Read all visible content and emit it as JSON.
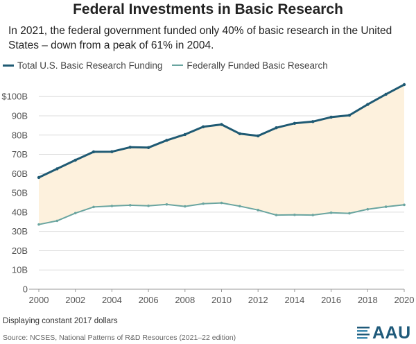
{
  "title": "Federal Investments in Basic Research",
  "subtitle": "In 2021, the federal government funded only 40% of basic research in the United States – down from a peak of 61% in 2004.",
  "footnote": "Displaying constant 2017 dollars",
  "source": "Source: NCSES, National Patterns of R&D Resources (2021–22 edition)",
  "logo": {
    "text": "AAU"
  },
  "colors": {
    "total": "#1f5a73",
    "federal": "#6aa5a0",
    "fill": "#fdf1dd",
    "grid": "#dcdcdc",
    "axis": "#999999"
  },
  "chart_data": {
    "type": "line",
    "x": [
      2000,
      2001,
      2002,
      2003,
      2004,
      2005,
      2006,
      2007,
      2008,
      2009,
      2010,
      2011,
      2012,
      2013,
      2014,
      2015,
      2016,
      2017,
      2018,
      2019,
      2020
    ],
    "xticks": [
      2000,
      2002,
      2004,
      2006,
      2008,
      2010,
      2012,
      2014,
      2016,
      2018,
      2020
    ],
    "yticks": [
      0,
      10,
      20,
      30,
      40,
      50,
      60,
      70,
      80,
      90,
      100
    ],
    "ytick_labels": [
      "0",
      "10B",
      "20B",
      "30B",
      "40B",
      "50B",
      "60B",
      "70B",
      "80B",
      "90B",
      "$100B"
    ],
    "ylim": [
      0,
      108
    ],
    "xlim": [
      2000,
      2020
    ],
    "grid": true,
    "legend_position": "top-left",
    "fill_between_series": true,
    "series": [
      {
        "name": "Total U.S. Basic Research Funding",
        "color": "#1f5a73",
        "values": [
          58.0,
          62.5,
          67.0,
          71.3,
          71.4,
          73.7,
          73.5,
          77.3,
          80.3,
          84.3,
          85.5,
          80.7,
          79.6,
          83.8,
          86.1,
          87.0,
          89.3,
          90.3,
          95.9,
          101.2,
          106.2
        ]
      },
      {
        "name": "Federally Funded Basic Research",
        "color": "#6aa5a0",
        "values": [
          33.6,
          35.5,
          39.5,
          42.7,
          43.2,
          43.6,
          43.3,
          44.0,
          43.0,
          44.4,
          44.8,
          43.1,
          41.1,
          38.5,
          38.6,
          38.5,
          39.7,
          39.4,
          41.5,
          42.8,
          43.8
        ]
      }
    ]
  }
}
